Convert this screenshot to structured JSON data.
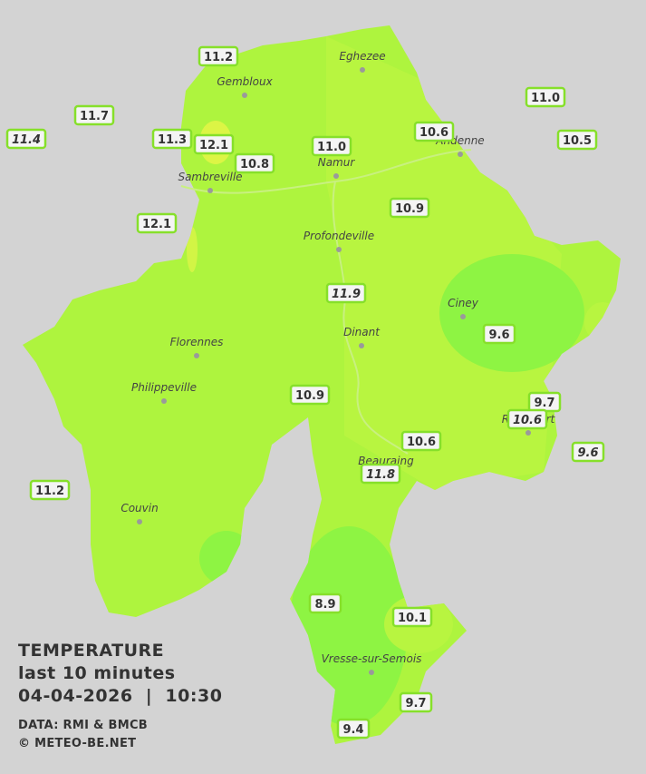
{
  "legend": {
    "title": "TEMPERATURE",
    "subtitle": "last 10 minutes",
    "datetime": "04-04-2026  |  10:30",
    "source": "DATA: RMI & BMCB",
    "credit": "© METEO-BE.NET"
  },
  "cities": [
    "Eghezee",
    "Gembloux",
    "Andenne",
    "Namur",
    "Sambreville",
    "Profondeville",
    "Ciney",
    "Dinant",
    "Florennes",
    "Philippeville",
    "Rochefort",
    "Beauraing",
    "Couvin",
    "Vresse-sur-Semois"
  ],
  "stations": [
    {
      "value": "11.2",
      "italic": false
    },
    {
      "value": "11.7",
      "italic": false
    },
    {
      "value": "11.4",
      "italic": true
    },
    {
      "value": "11.3",
      "italic": false
    },
    {
      "value": "12.1",
      "italic": false
    },
    {
      "value": "10.8",
      "italic": false
    },
    {
      "value": "11.0",
      "italic": false
    },
    {
      "value": "10.6",
      "italic": false
    },
    {
      "value": "11.0",
      "italic": false
    },
    {
      "value": "10.5",
      "italic": false
    },
    {
      "value": "12.1",
      "italic": false
    },
    {
      "value": "10.9",
      "italic": false
    },
    {
      "value": "11.9",
      "italic": true
    },
    {
      "value": "9.6",
      "italic": false
    },
    {
      "value": "10.9",
      "italic": false
    },
    {
      "value": "9.7",
      "italic": false
    },
    {
      "value": "10.6",
      "italic": true
    },
    {
      "value": "9.6",
      "italic": true
    },
    {
      "value": "10.6",
      "italic": false
    },
    {
      "value": "11.8",
      "italic": true
    },
    {
      "value": "11.2",
      "italic": false
    },
    {
      "value": "8.9",
      "italic": false
    },
    {
      "value": "10.1",
      "italic": false
    },
    {
      "value": "9.7",
      "italic": false
    },
    {
      "value": "9.4",
      "italic": false
    }
  ]
}
